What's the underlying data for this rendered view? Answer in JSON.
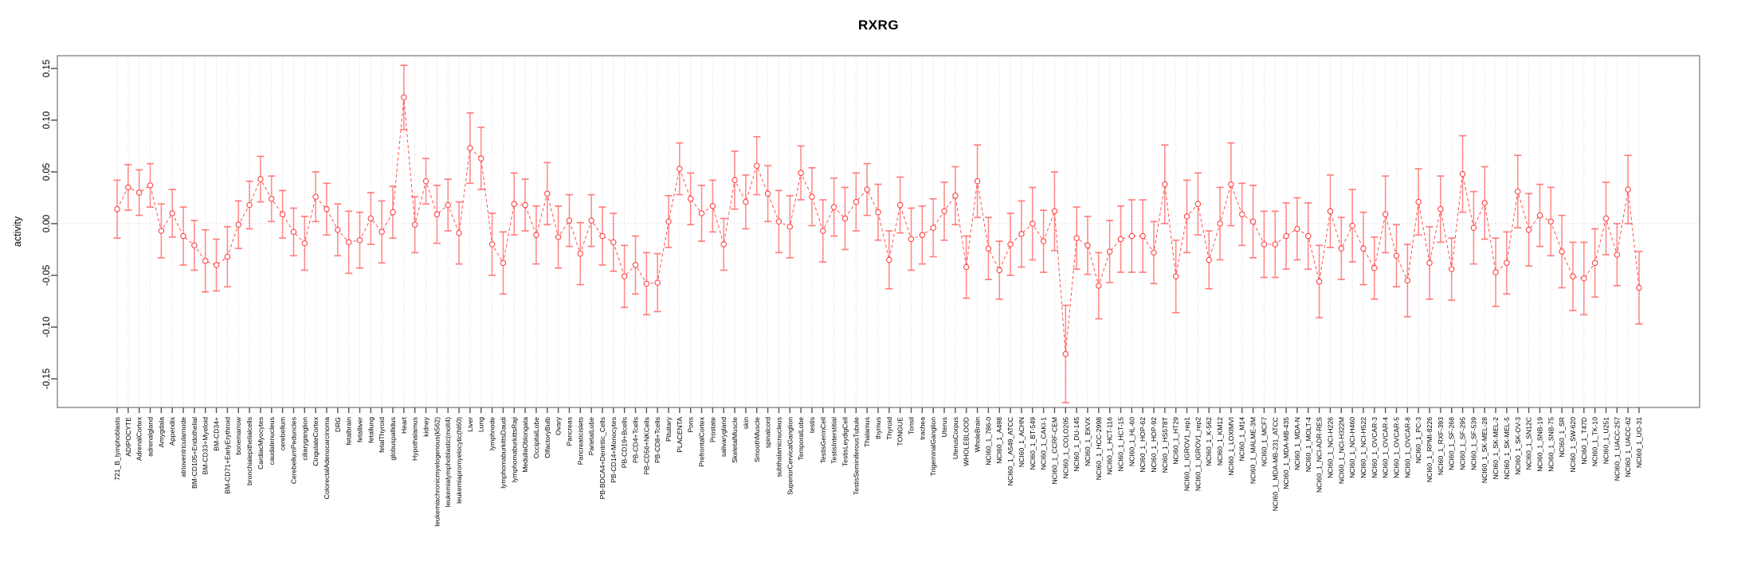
{
  "colors": {
    "point_stroke": "#ff4242",
    "series_line": "#ff5252",
    "error_bar": "#ff9e9e",
    "error_cap": "#ff8080",
    "error_dash": "#ff6666",
    "gridline": "#dcdcdc",
    "zero_line": "#cccccc",
    "axis_box": "#8f8f8f",
    "tick": "#555555",
    "text": "#000000"
  },
  "chart_data": {
    "type": "line",
    "title": "RXRG",
    "xlabel": "",
    "ylabel": "activity",
    "ylim": [
      -0.178,
      0.162
    ],
    "yticks": [
      -0.15,
      -0.1,
      -0.05,
      0,
      0.05,
      0.1,
      0.15
    ],
    "ytick_labels": [
      "-0.15",
      "-0.10",
      "-0.05",
      "0.00",
      "0.05",
      "0.10",
      "0.15"
    ],
    "grid": "vertical dashed gridline per category; dotted horizontal line at 0",
    "legend_position": "none",
    "series": [
      {
        "name": "activity",
        "marker": "open-circle",
        "line_style": "dashed",
        "error_bars": true
      }
    ],
    "categories": [
      "721_B_lymphoblasts",
      "ADIPOCYTE",
      "AdrenalCortex",
      "adrenalgland",
      "Amygdala",
      "Appendix",
      "atrioventricularnode",
      "BM-CD105+Endothelial",
      "BM-CD33+Myeloid",
      "BM-CD34+",
      "BM-CD71+EarlyErythroid",
      "bonemarrow",
      "bronchialepithelialcells",
      "CardiacMyocytes",
      "caudatenucleus",
      "cerebellum",
      "CerebellumPeduncles",
      "ciliaryganglion",
      "CingulateCortex",
      "ColorectalAdenocarcinoma",
      "DRG",
      "fetalbrain",
      "fetalliver",
      "fetallung",
      "fetalThyroid",
      "globuspallidus",
      "Heart",
      "Hypothalamus",
      "kidney",
      "leukemiachronicmyelogenous(k562)",
      "leukemialymphoblastic(molt4)",
      "leukemiapromyelocytic(hl60)",
      "Liver",
      "Lung",
      "lymphnode",
      "lymphomaburkittsDaudi",
      "lymphomaburkittsRaji",
      "MedullaOblongata",
      "OccipitalLobe",
      "OlfactoryBulb",
      "Ovary",
      "Pancreas",
      "Pancreaticislets",
      "ParietalLobe",
      "PB-BDCA4+Dentritic_Cells",
      "PB-CD14+Monocytes",
      "PB-CD19+Bcells",
      "PB-CD4+Tcells",
      "PB-CD56+NKCells",
      "PB-CD8+Tcells",
      "Pituitary",
      "PLACENTA",
      "Pons",
      "PrefrontalCortex",
      "Prostate",
      "salivarygland",
      "SkeletalMuscle",
      "skin",
      "SmoothMuscle",
      "spinalcord",
      "subthalamicnucleus",
      "SuperiorCervicalGanglion",
      "TemporalLobe",
      "testis",
      "TestisGermCell",
      "TestisInterstitial",
      "TestisLeydigCell",
      "TestisSeminiferousTubule",
      "Thalamus",
      "thymus",
      "Thyroid",
      "TONGUE",
      "Tonsil",
      "trachea",
      "TrigeminalGanglion",
      "Uterus",
      "UterusCorpus",
      "WHOLEBLOOD",
      "WholeBrain",
      "NCI60_1_786-0",
      "NCI60_1_A498",
      "NCI60_1_A549_ATCC",
      "NCI60_1_ACHN",
      "NCI60_1_BT-549",
      "NCI60_1_CAKI-1",
      "NCI60_1_CCRF-CEM",
      "NCI60_1_COLO205",
      "NCI60_1_DU-145",
      "NCI60_1_EKVX",
      "NCI60_1_HCC-2998",
      "NCI60_1_HCT-116",
      "NCI60_1_HCT-15",
      "NCI60_1_HL-60",
      "NCI60_1_HOP-62",
      "NCI60_1_HOP-92",
      "NCI60_1_HS578T",
      "NCI60_1_HT29",
      "NCI60_1_IGROV1_rep1",
      "NCI60_1_IGROV1_rep2",
      "NCI60_1_K-562",
      "NCI60_1_KM12",
      "NCI60_1_LOXIMVI",
      "NCI60_1_M14",
      "NCI60_1_MALME-3M",
      "NCI60_1_MCF7",
      "NCI60_1_MDA-MB-231_ATCC",
      "NCI60_1_MDA-MB-435",
      "NCI60_1_MDA-N",
      "NCI60_1_MOLT-4",
      "NCI60_1_NCI-ADR-RES",
      "NCI60_1_NCI-H226",
      "NCI60_1_NCI-H322M",
      "NCI60_1_NCI-H460",
      "NCI60_1_NCI-H522",
      "NCI60_1_OVCAR-3",
      "NCI60_1_OVCAR-4",
      "NCI60_1_OVCAR-5",
      "NCI60_1_OVCAR-8",
      "NCI60_1_PC-3",
      "NCI60_1_RPMI-8226",
      "NCI60_1_RXF-393",
      "NCI60_1_SF-268",
      "NCI60_1_SF-295",
      "NCI60_1_SF-539",
      "NCI60_1_SK-MEL-28",
      "NCI60_1_SK-MEL-2",
      "NCI60_1_SK-MEL-5",
      "NCI60_1_SK-OV-3",
      "NCI60_1_SN12C",
      "NCI60_1_SNB-19",
      "NCI60_1_SNB-75",
      "NCI60_1_SR",
      "NCI60_1_SW-620",
      "NCI60_1_T47D",
      "NCI60_1_TK-10",
      "NCI60_1_U251",
      "NCI60_1_UACC-257",
      "NCI60_1_UACC-62",
      "NCI60_1_UO-31"
    ],
    "values": [
      0.014,
      0.035,
      0.03,
      0.037,
      -0.007,
      0.01,
      -0.012,
      -0.021,
      -0.036,
      -0.04,
      -0.032,
      -0.001,
      0.018,
      0.043,
      0.024,
      0.009,
      -0.008,
      -0.019,
      0.026,
      0.014,
      -0.006,
      -0.018,
      -0.016,
      0.005,
      -0.008,
      0.011,
      0.122,
      -0.001,
      0.041,
      0.009,
      0.018,
      -0.009,
      0.073,
      0.063,
      -0.02,
      -0.038,
      0.019,
      0.018,
      -0.011,
      0.029,
      -0.013,
      0.003,
      -0.029,
      0.003,
      -0.012,
      -0.018,
      -0.051,
      -0.04,
      -0.058,
      -0.057,
      0.002,
      0.053,
      0.024,
      0.01,
      0.017,
      -0.02,
      0.042,
      0.021,
      0.056,
      0.029,
      0.002,
      -0.003,
      0.049,
      0.026,
      -0.007,
      0.016,
      0.005,
      0.021,
      0.033,
      0.011,
      -0.035,
      0.018,
      -0.015,
      -0.011,
      -0.004,
      0.012,
      0.027,
      -0.042,
      0.041,
      -0.024,
      -0.045,
      -0.02,
      -0.01,
      0.0,
      -0.017,
      0.012,
      -0.126,
      -0.014,
      -0.021,
      -0.06,
      -0.027,
      -0.015,
      -0.012,
      -0.012,
      -0.028,
      0.038,
      -0.051,
      0.007,
      0.019,
      -0.035,
      0.0,
      0.038,
      0.009,
      0.002,
      -0.02,
      -0.02,
      -0.012,
      -0.005,
      -0.012,
      -0.056,
      0.012,
      -0.024,
      -0.002,
      -0.024,
      -0.043,
      0.009,
      -0.031,
      -0.055,
      0.021,
      -0.038,
      0.014,
      -0.044,
      0.048,
      -0.004,
      0.02,
      -0.047,
      -0.038,
      0.031,
      -0.006,
      0.008,
      0.002,
      -0.027,
      -0.051,
      -0.053,
      -0.038,
      0.005,
      -0.03,
      0.033,
      -0.062
    ],
    "errors": [
      0.028,
      0.022,
      0.022,
      0.021,
      0.026,
      0.023,
      0.028,
      0.024,
      0.03,
      0.025,
      0.029,
      0.023,
      0.023,
      0.022,
      0.022,
      0.023,
      0.023,
      0.026,
      0.024,
      0.025,
      0.025,
      0.03,
      0.027,
      0.025,
      0.03,
      0.025,
      0.031,
      0.027,
      0.022,
      0.028,
      0.025,
      0.03,
      0.034,
      0.03,
      0.03,
      0.03,
      0.03,
      0.025,
      0.028,
      0.03,
      0.03,
      0.025,
      0.03,
      0.025,
      0.028,
      0.028,
      0.03,
      0.028,
      0.03,
      0.028,
      0.025,
      0.025,
      0.025,
      0.027,
      0.025,
      0.025,
      0.028,
      0.026,
      0.028,
      0.027,
      0.03,
      0.03,
      0.026,
      0.028,
      0.03,
      0.028,
      0.03,
      0.028,
      0.025,
      0.027,
      0.028,
      0.027,
      0.03,
      0.028,
      0.028,
      0.028,
      0.028,
      0.03,
      0.035,
      0.03,
      0.028,
      0.03,
      0.032,
      0.035,
      0.03,
      0.038,
      0.047,
      0.03,
      0.028,
      0.032,
      0.03,
      0.032,
      0.035,
      0.035,
      0.03,
      0.038,
      0.035,
      0.035,
      0.03,
      0.028,
      0.035,
      0.04,
      0.03,
      0.035,
      0.032,
      0.032,
      0.032,
      0.03,
      0.032,
      0.035,
      0.035,
      0.03,
      0.035,
      0.035,
      0.03,
      0.037,
      0.03,
      0.035,
      0.032,
      0.035,
      0.032,
      0.03,
      0.037,
      0.035,
      0.035,
      0.033,
      0.03,
      0.035,
      0.035,
      0.03,
      0.033,
      0.035,
      0.033,
      0.035,
      0.033,
      0.035,
      0.03,
      0.033,
      0.035
    ]
  }
}
